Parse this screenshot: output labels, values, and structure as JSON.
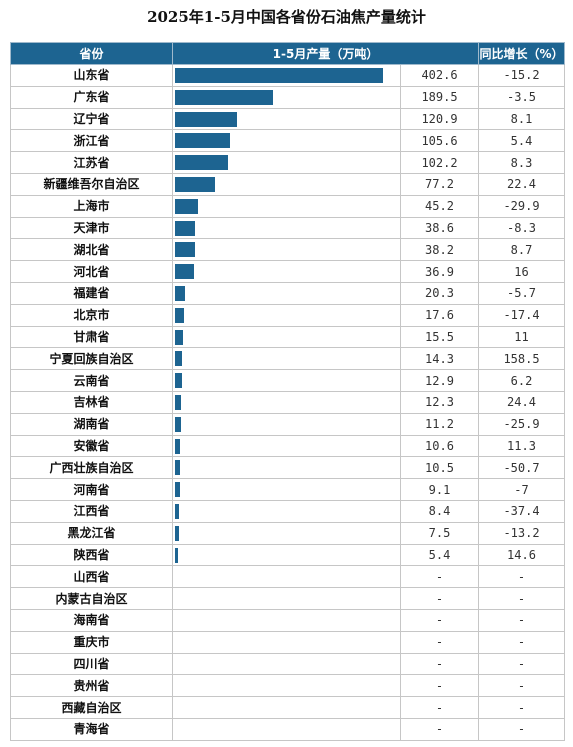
{
  "title": "2025年1-5月中国各省份石油焦产量统计",
  "colors": {
    "header_bg": "#1d6491",
    "bar": "#1d6491",
    "grid": "#c6c6c6"
  },
  "header": {
    "province": "省份",
    "production": "1-5月产量（万吨）",
    "yoy": "同比增长（%）"
  },
  "chart_data": {
    "type": "table",
    "bar_max": 402.6,
    "rows": [
      {
        "province": "山东省",
        "value": 402.6,
        "value_label": "402.6",
        "yoy": "-15.2"
      },
      {
        "province": "广东省",
        "value": 189.5,
        "value_label": "189.5",
        "yoy": "-3.5"
      },
      {
        "province": "辽宁省",
        "value": 120.9,
        "value_label": "120.9",
        "yoy": "8.1"
      },
      {
        "province": "浙江省",
        "value": 105.6,
        "value_label": "105.6",
        "yoy": "5.4"
      },
      {
        "province": "江苏省",
        "value": 102.2,
        "value_label": "102.2",
        "yoy": "8.3"
      },
      {
        "province": "新疆维吾尔自治区",
        "value": 77.2,
        "value_label": "77.2",
        "yoy": "22.4"
      },
      {
        "province": "上海市",
        "value": 45.2,
        "value_label": "45.2",
        "yoy": "-29.9"
      },
      {
        "province": "天津市",
        "value": 38.6,
        "value_label": "38.6",
        "yoy": "-8.3"
      },
      {
        "province": "湖北省",
        "value": 38.2,
        "value_label": "38.2",
        "yoy": "8.7"
      },
      {
        "province": "河北省",
        "value": 36.9,
        "value_label": "36.9",
        "yoy": "16"
      },
      {
        "province": "福建省",
        "value": 20.3,
        "value_label": "20.3",
        "yoy": "-5.7"
      },
      {
        "province": "北京市",
        "value": 17.6,
        "value_label": "17.6",
        "yoy": "-17.4"
      },
      {
        "province": "甘肃省",
        "value": 15.5,
        "value_label": "15.5",
        "yoy": "11"
      },
      {
        "province": "宁夏回族自治区",
        "value": 14.3,
        "value_label": "14.3",
        "yoy": "158.5"
      },
      {
        "province": "云南省",
        "value": 12.9,
        "value_label": "12.9",
        "yoy": "6.2"
      },
      {
        "province": "吉林省",
        "value": 12.3,
        "value_label": "12.3",
        "yoy": "24.4"
      },
      {
        "province": "湖南省",
        "value": 11.2,
        "value_label": "11.2",
        "yoy": "-25.9"
      },
      {
        "province": "安徽省",
        "value": 10.6,
        "value_label": "10.6",
        "yoy": "11.3"
      },
      {
        "province": "广西壮族自治区",
        "value": 10.5,
        "value_label": "10.5",
        "yoy": "-50.7"
      },
      {
        "province": "河南省",
        "value": 9.1,
        "value_label": "9.1",
        "yoy": "-7"
      },
      {
        "province": "江西省",
        "value": 8.4,
        "value_label": "8.4",
        "yoy": "-37.4"
      },
      {
        "province": "黑龙江省",
        "value": 7.5,
        "value_label": "7.5",
        "yoy": "-13.2"
      },
      {
        "province": "陕西省",
        "value": 5.4,
        "value_label": "5.4",
        "yoy": "14.6"
      },
      {
        "province": "山西省",
        "value": null,
        "value_label": "-",
        "yoy": "-"
      },
      {
        "province": "内蒙古自治区",
        "value": null,
        "value_label": "-",
        "yoy": "-"
      },
      {
        "province": "海南省",
        "value": null,
        "value_label": "-",
        "yoy": "-"
      },
      {
        "province": "重庆市",
        "value": null,
        "value_label": "-",
        "yoy": "-"
      },
      {
        "province": "四川省",
        "value": null,
        "value_label": "-",
        "yoy": "-"
      },
      {
        "province": "贵州省",
        "value": null,
        "value_label": "-",
        "yoy": "-"
      },
      {
        "province": "西藏自治区",
        "value": null,
        "value_label": "-",
        "yoy": "-"
      },
      {
        "province": "青海省",
        "value": null,
        "value_label": "-",
        "yoy": "-"
      }
    ]
  }
}
